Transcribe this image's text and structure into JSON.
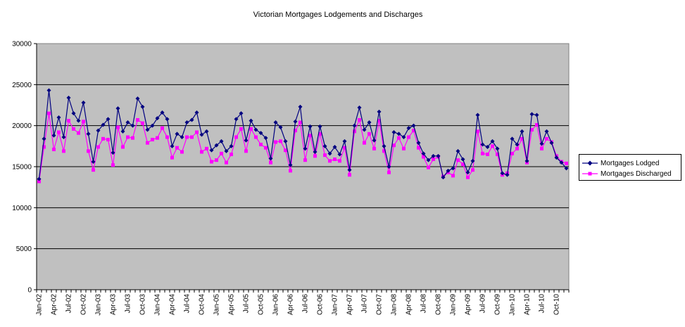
{
  "chart_data": {
    "type": "line",
    "title": "Victorian Mortgages Lodgements and Discharges",
    "xlabel": "",
    "ylabel": "",
    "ylim": [
      0,
      30000
    ],
    "yticks": [
      "0",
      "5000",
      "10000",
      "15000",
      "20000",
      "25000",
      "30000"
    ],
    "grid": "horizontal",
    "legend": "right",
    "x_tick_labels": [
      "Jan-02",
      "Apr-02",
      "Jul-02",
      "Oct-02",
      "Jan-03",
      "Apr-03",
      "Jul-03",
      "Oct-03",
      "Jan-04",
      "Apr-04",
      "Jul-04",
      "Oct-04",
      "Jan-05",
      "Apr-05",
      "Jul-05",
      "Oct-05",
      "Jan-06",
      "Apr-06",
      "Jul-06",
      "Oct-06",
      "Jan-07",
      "Apr-07",
      "Jul-07",
      "Oct-07",
      "Jan-08",
      "Apr-08",
      "Jul-08",
      "Oct-08",
      "Jan-09",
      "Apr-09",
      "Jul-09",
      "Oct-09",
      "Jan-10",
      "Apr-10",
      "Jul-10",
      "Oct-10"
    ],
    "series": [
      {
        "name": "Mortgages Lodged",
        "color": "#000080",
        "marker": "diamond",
        "values": [
          13500,
          18400,
          24300,
          18800,
          21000,
          18600,
          23400,
          21500,
          20600,
          22800,
          19000,
          15600,
          19400,
          20100,
          20800,
          16700,
          22100,
          19300,
          20400,
          20000,
          23300,
          22300,
          19500,
          20000,
          20900,
          21600,
          20800,
          17500,
          19000,
          18600,
          20400,
          20700,
          21600,
          18900,
          19300,
          17000,
          17600,
          18100,
          16900,
          17500,
          20800,
          21500,
          18200,
          20600,
          19500,
          19100,
          18500,
          16000,
          20400,
          19800,
          18100,
          15200,
          20500,
          22300,
          17200,
          19900,
          16800,
          19900,
          17500,
          16600,
          17400,
          16500,
          18100,
          14600,
          20000,
          22200,
          19500,
          20400,
          18200,
          21700,
          17500,
          15000,
          19200,
          19000,
          18600,
          19700,
          20000,
          17900,
          16600,
          15800,
          16300,
          16300,
          13700,
          14500,
          14800,
          16900,
          15900,
          14300,
          15700,
          21300,
          17700,
          17400,
          18100,
          17200,
          14200,
          14000,
          18400,
          17700,
          19300,
          15700,
          21400,
          21300,
          17800,
          19300,
          17900,
          16100,
          15500,
          14800
        ],
        "discharged_shown_separately": false
      },
      {
        "name": "Mortgages Discharged",
        "color": "#FF00FF",
        "marker": "square",
        "values": [
          13200,
          17400,
          21500,
          17100,
          19200,
          16900,
          20600,
          19600,
          19100,
          20500,
          16900,
          14600,
          17400,
          18400,
          18300,
          15200,
          19800,
          17400,
          18600,
          18500,
          20700,
          20300,
          17900,
          18300,
          18500,
          19700,
          18600,
          16100,
          17300,
          16800,
          18600,
          18600,
          19200,
          16800,
          17200,
          15600,
          15800,
          16600,
          15500,
          16500,
          18600,
          19600,
          16900,
          19600,
          18600,
          17700,
          17300,
          15500,
          18000,
          18100,
          17000,
          14500,
          19400,
          20400,
          15800,
          18800,
          16300,
          19000,
          16400,
          15700,
          15900,
          15700,
          17300,
          14000,
          19300,
          20700,
          17900,
          19000,
          17200,
          20600,
          16900,
          14300,
          17600,
          18500,
          17200,
          18600,
          19400,
          17300,
          16200,
          14900,
          15900,
          16200,
          13800,
          14300,
          13900,
          15800,
          15300,
          13700,
          14600,
          19300,
          16600,
          16500,
          17500,
          16500,
          14000,
          14200,
          16600,
          17200,
          18400,
          15500,
          19500,
          20100,
          17200,
          18400,
          18000,
          16300,
          15600,
          15400
        ]
      }
    ]
  }
}
